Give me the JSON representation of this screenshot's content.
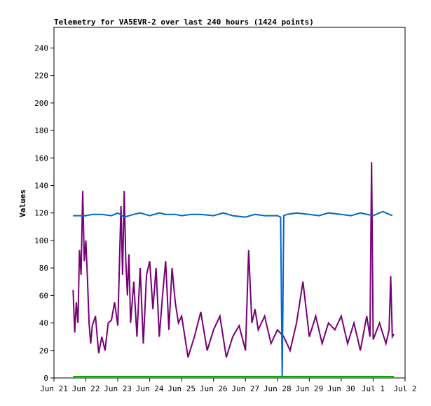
{
  "chart_data": {
    "type": "line",
    "title": "Telemetry for VA5EVR-2 over last 240 hours (1424 points)",
    "xlabel": "",
    "ylabel": "Values",
    "ylim": [
      0,
      255
    ],
    "xlim": [
      0,
      11
    ],
    "y_ticks": [
      0,
      20,
      40,
      60,
      80,
      100,
      120,
      140,
      160,
      180,
      200,
      220,
      240
    ],
    "x_tick_labels": [
      "Jun 21",
      "Jun 22",
      "Jun 23",
      "Jun 24",
      "Jun 25",
      "Jun 26",
      "Jun 27",
      "Jun 28",
      "Jun 29",
      "Jun 30",
      "Jul 1",
      "Jul 2"
    ],
    "grid": false,
    "legend": "none",
    "series": [
      {
        "color": "#0066cc",
        "x": [
          0.6,
          1.0,
          1.2,
          1.5,
          1.8,
          2.0,
          2.2,
          2.5,
          2.7,
          3.0,
          3.3,
          3.5,
          3.8,
          4.0,
          4.3,
          4.6,
          5.0,
          5.3,
          5.6,
          6.0,
          6.3,
          6.6,
          7.0,
          7.1,
          7.15,
          7.2,
          7.3,
          7.6,
          8.0,
          8.3,
          8.6,
          9.0,
          9.3,
          9.6,
          10.0,
          10.3,
          10.6
        ],
        "y": [
          118,
          118,
          119,
          119,
          118,
          120,
          117,
          119,
          120,
          118,
          120,
          119,
          119,
          118,
          119,
          119,
          118,
          120,
          118,
          117,
          119,
          118,
          118,
          117,
          1,
          118,
          119,
          120,
          119,
          118,
          120,
          119,
          118,
          120,
          118,
          121,
          118
        ]
      },
      {
        "color": "#770077",
        "x": [
          0.6,
          0.65,
          0.7,
          0.75,
          0.8,
          0.85,
          0.9,
          0.95,
          1.0,
          1.05,
          1.1,
          1.15,
          1.2,
          1.3,
          1.4,
          1.5,
          1.6,
          1.7,
          1.8,
          1.9,
          2.0,
          2.1,
          2.15,
          2.2,
          2.25,
          2.3,
          2.35,
          2.4,
          2.5,
          2.6,
          2.7,
          2.8,
          2.9,
          3.0,
          3.1,
          3.2,
          3.3,
          3.4,
          3.5,
          3.6,
          3.7,
          3.8,
          3.9,
          4.0,
          4.2,
          4.4,
          4.6,
          4.8,
          5.0,
          5.2,
          5.4,
          5.6,
          5.8,
          6.0,
          6.1,
          6.2,
          6.3,
          6.4,
          6.6,
          6.8,
          7.0,
          7.2,
          7.4,
          7.6,
          7.8,
          8.0,
          8.2,
          8.4,
          8.6,
          8.8,
          9.0,
          9.2,
          9.4,
          9.6,
          9.8,
          9.9,
          9.95,
          10.0,
          10.2,
          10.4,
          10.5,
          10.55,
          10.6,
          10.65
        ],
        "y": [
          64,
          33,
          55,
          40,
          93,
          75,
          136,
          85,
          100,
          72,
          40,
          25,
          38,
          45,
          18,
          30,
          20,
          40,
          42,
          55,
          38,
          125,
          75,
          136,
          85,
          60,
          90,
          40,
          70,
          30,
          80,
          25,
          75,
          85,
          50,
          80,
          30,
          60,
          85,
          35,
          80,
          55,
          40,
          45,
          15,
          30,
          48,
          20,
          35,
          45,
          15,
          30,
          38,
          20,
          93,
          40,
          50,
          35,
          45,
          25,
          35,
          30,
          20,
          40,
          70,
          30,
          45,
          25,
          40,
          35,
          45,
          25,
          40,
          20,
          45,
          30,
          157,
          28,
          40,
          25,
          35,
          74,
          30,
          32
        ]
      },
      {
        "color": "#00aa00",
        "x": [
          0.6,
          10.65
        ],
        "y": [
          1,
          1
        ]
      }
    ]
  }
}
